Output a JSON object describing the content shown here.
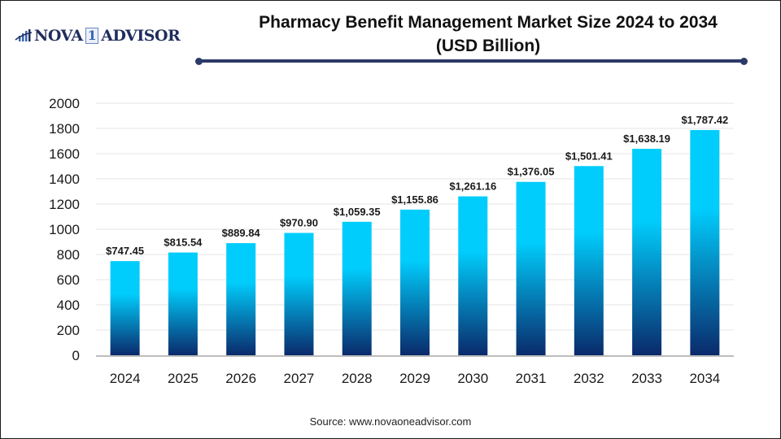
{
  "logo": {
    "brand_left": "NOVA",
    "brand_number": "1",
    "brand_right": "ADVISOR",
    "icon": "bar-chart-swoosh-icon"
  },
  "source": "Source: www.novaoneadvisor.com",
  "colors": {
    "bar_top": "#00cdfc",
    "bar_bottom": "#0a2a6b",
    "title_rule": "#2b3a67",
    "gridline": "#e6e6e6",
    "axis": "#bdbdbd"
  },
  "chart_data": {
    "type": "bar",
    "title": "Pharmacy Benefit Management Market Size 2024 to 2034",
    "subtitle": "(USD Billion)",
    "xlabel": "",
    "ylabel": "",
    "categories": [
      "2024",
      "2025",
      "2026",
      "2027",
      "2028",
      "2029",
      "2030",
      "2031",
      "2032",
      "2033",
      "2034"
    ],
    "values": [
      747.45,
      815.54,
      889.84,
      970.9,
      1059.35,
      1155.86,
      1261.16,
      1376.05,
      1501.41,
      1638.19,
      1787.42
    ],
    "data_labels": [
      "$747.45",
      "$815.54",
      "$889.84",
      "$970.90",
      "$1,059.35",
      "$1,155.86",
      "$1,261.16",
      "$1,376.05",
      "$1,501.41",
      "$1,638.19",
      "$1,787.42"
    ],
    "ylim": [
      0,
      2000
    ],
    "yticks": [
      0,
      200,
      400,
      600,
      800,
      1000,
      1200,
      1400,
      1600,
      1800,
      2000
    ],
    "ytick_labels": [
      "0",
      "200",
      "400",
      "600",
      "800",
      "1000",
      "1200",
      "1400",
      "1600",
      "1800",
      "2000"
    ],
    "grid": true,
    "legend": "none"
  }
}
